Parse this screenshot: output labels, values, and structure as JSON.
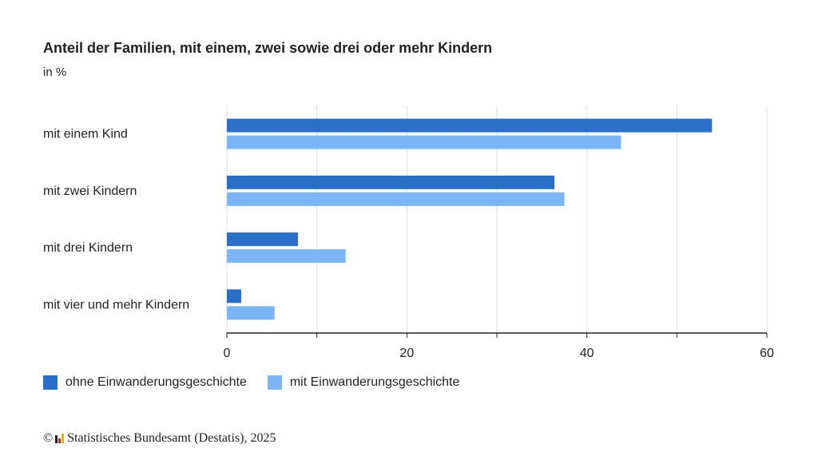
{
  "colors": {
    "series1": "#2a6fc9",
    "series2": "#7ab6f7",
    "grid": "#dddddd",
    "axis": "#222222"
  },
  "footer": {
    "copyright_symbol": "©",
    "source": "Statistisches Bundesamt (Destatis), 2025"
  },
  "chart_data": {
    "type": "bar",
    "orientation": "horizontal",
    "title": "Anteil der Familien, mit einem, zwei sowie drei oder mehr Kindern",
    "subtitle": "in %",
    "categories": [
      "mit einem Kind",
      "mit zwei Kindern",
      "mit drei Kindern",
      "mit vier und mehr Kindern"
    ],
    "series": [
      {
        "name": "ohne Einwanderungsgeschichte",
        "values": [
          53.9,
          36.4,
          7.9,
          1.6
        ]
      },
      {
        "name": "mit Einwanderungsgeschichte",
        "values": [
          43.8,
          37.5,
          13.2,
          5.3
        ]
      }
    ],
    "xlim": [
      0,
      60
    ],
    "xticks": [
      0,
      20,
      40,
      60
    ],
    "grid": true,
    "legend_position": "bottom-left"
  }
}
